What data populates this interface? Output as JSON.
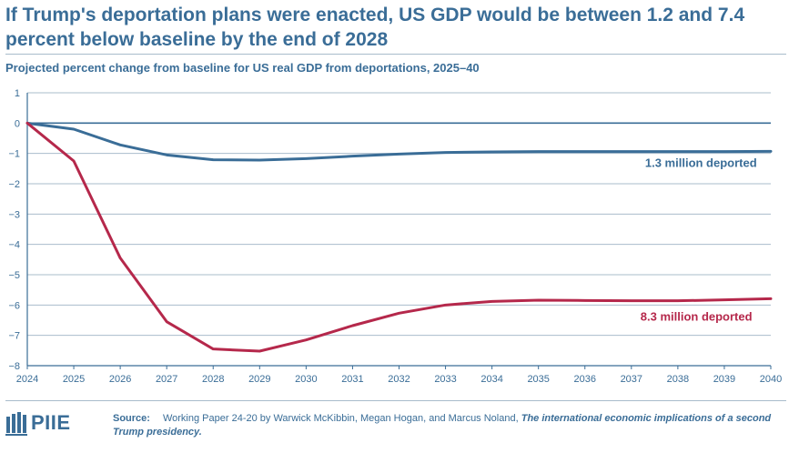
{
  "header": {
    "title": "If Trump's deportation plans were enacted, US GDP would be between 1.2 and 7.4 percent below baseline by the end of 2028",
    "subtitle": "Projected percent change from baseline for US real GDP from deportations, 2025–40"
  },
  "footer": {
    "source_label": "Source:",
    "source_text": "Working Paper 24-20 by Warwick McKibbin, Megan Hogan, and Marcus Noland, ",
    "source_title": "The international economic implications of a second Trump presidency.",
    "logo_text": "PIIE"
  },
  "colors": {
    "accent": "#3a6d97",
    "series1": "#3a6d97",
    "series2": "#b5284b",
    "grid": "#a9bccb"
  },
  "chart_data": {
    "type": "line",
    "title": "If Trump's deportation plans were enacted, US GDP would be between 1.2 and 7.4 percent below baseline by the end of 2028",
    "subtitle": "Projected percent change from baseline for US real GDP from deportations, 2025–40",
    "x": [
      2024,
      2025,
      2026,
      2027,
      2028,
      2029,
      2030,
      2031,
      2032,
      2033,
      2034,
      2035,
      2036,
      2037,
      2038,
      2039,
      2040
    ],
    "x_tick_labels": [
      "2024",
      "2025",
      "2026",
      "2027",
      "2028",
      "2029",
      "2030",
      "2031",
      "2032",
      "2033",
      "2034",
      "2035",
      "2036",
      "2037",
      "2038",
      "2039",
      "2040"
    ],
    "y_ticks": [
      1,
      0,
      -1,
      -2,
      -3,
      -4,
      -5,
      -6,
      -7,
      -8
    ],
    "y_tick_labels": [
      "1",
      "0",
      "−1",
      "−2",
      "−3",
      "−4",
      "−5",
      "−6",
      "−7",
      "−8"
    ],
    "ylim": [
      -8,
      1
    ],
    "xlim": [
      2024,
      2040
    ],
    "grid": true,
    "series": [
      {
        "name": "1.3 million deported",
        "color": "#3a6d97",
        "label_anchor": [
          2039.7,
          -1.45
        ],
        "values": [
          0,
          -0.2,
          -0.72,
          -1.05,
          -1.21,
          -1.22,
          -1.17,
          -1.09,
          -1.02,
          -0.97,
          -0.95,
          -0.94,
          -0.94,
          -0.94,
          -0.94,
          -0.94,
          -0.93
        ]
      },
      {
        "name": "8.3 million deported",
        "color": "#b5284b",
        "label_anchor": [
          2039.6,
          -6.52
        ],
        "values": [
          0,
          -1.25,
          -4.45,
          -6.55,
          -7.45,
          -7.52,
          -7.15,
          -6.68,
          -6.27,
          -6.0,
          -5.88,
          -5.84,
          -5.85,
          -5.86,
          -5.86,
          -5.83,
          -5.79
        ]
      }
    ],
    "source": "Working Paper 24-20 by Warwick McKibbin, Megan Hogan, and Marcus Noland, The international economic implications of a second Trump presidency."
  }
}
